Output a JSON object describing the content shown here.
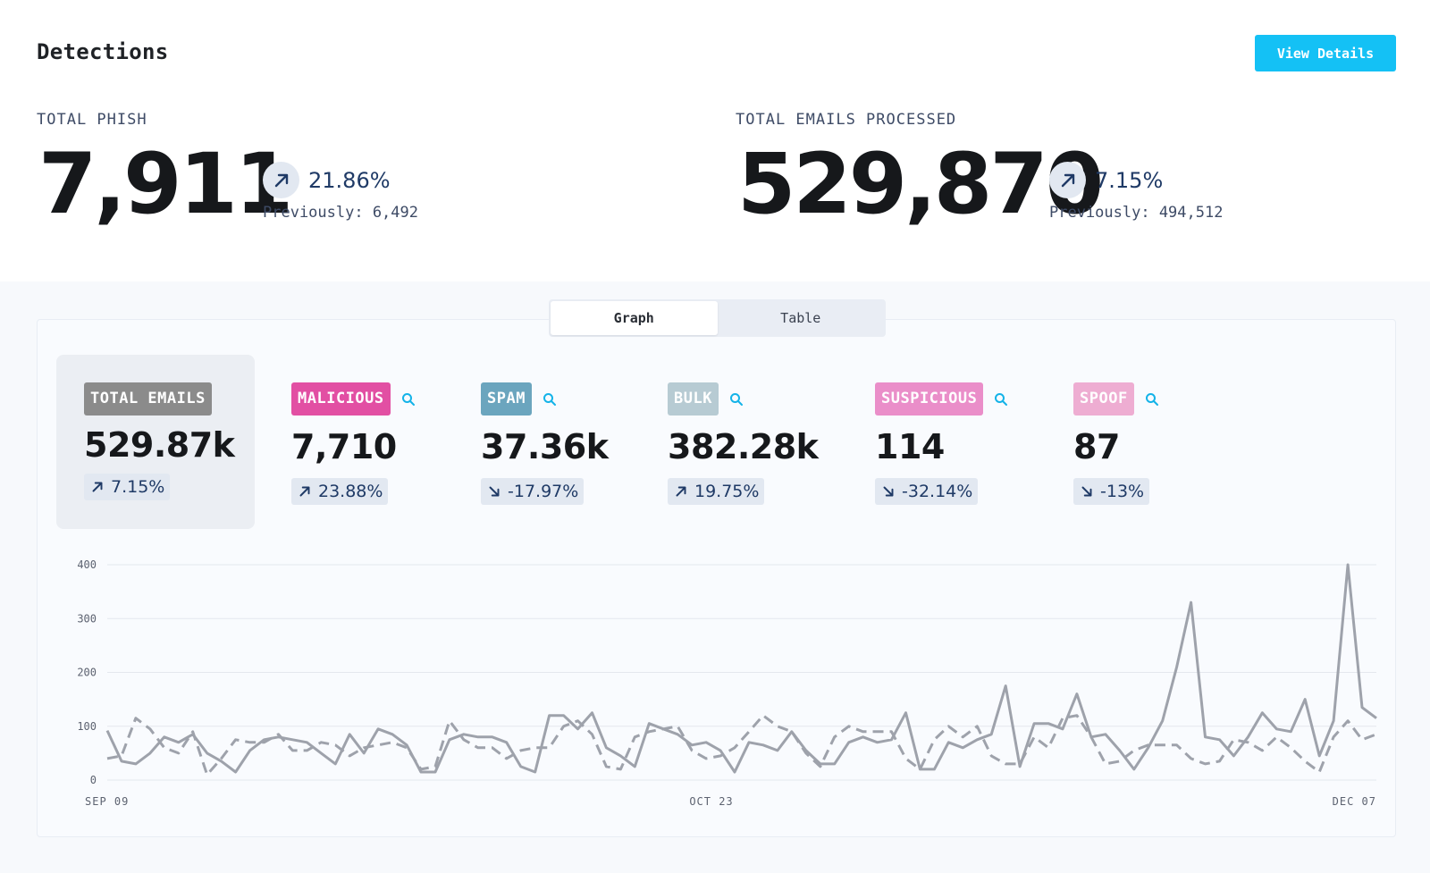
{
  "header": {
    "title": "Detections",
    "view_details_label": "View Details"
  },
  "stats": [
    {
      "label": "TOTAL PHISH",
      "value": "7,911",
      "change": "21.86%",
      "direction": "up",
      "previous": "Previously: 6,492"
    },
    {
      "label": "TOTAL EMAILS PROCESSED",
      "value": "529,870",
      "change": "7.15%",
      "direction": "up",
      "previous": "Previously: 494,512"
    }
  ],
  "view_toggle": {
    "options": [
      "Graph",
      "Table"
    ],
    "selected": "Graph"
  },
  "metrics": [
    {
      "label": "TOTAL EMAILS",
      "value": "529.87k",
      "change": "7.15%",
      "direction": "up",
      "color": "#8b8b8b",
      "searchable": false
    },
    {
      "label": "MALICIOUS",
      "value": "7,710",
      "change": "23.88%",
      "direction": "up",
      "color": "#e24fa3",
      "searchable": true
    },
    {
      "label": "SPAM",
      "value": "37.36k",
      "change": "-17.97%",
      "direction": "down",
      "color": "#6ba5be",
      "searchable": true
    },
    {
      "label": "BULK",
      "value": "382.28k",
      "change": "19.75%",
      "direction": "up",
      "color": "#b7cbd3",
      "searchable": true
    },
    {
      "label": "SUSPICIOUS",
      "value": "114",
      "change": "-32.14%",
      "direction": "down",
      "color": "#ea8ec9",
      "searchable": true
    },
    {
      "label": "SPOOF",
      "value": "87",
      "change": "-13%",
      "direction": "down",
      "color": "#eeadd2",
      "searchable": true
    }
  ],
  "colors": {
    "accent": "#14c1f5",
    "arrow": "#1f3a66",
    "series": "#9ea2ab"
  },
  "chart_data": {
    "type": "line",
    "xlabel": "",
    "ylabel": "",
    "ylim": [
      0,
      400
    ],
    "yticks": [
      0,
      100,
      200,
      300,
      400
    ],
    "xtick_labels": [
      "SEP 09",
      "OCT 23",
      "DEC 07"
    ],
    "grid": true,
    "n_points": 90,
    "series": [
      {
        "style": "solid",
        "values": [
          92,
          35,
          30,
          50,
          80,
          70,
          85,
          50,
          35,
          15,
          55,
          75,
          80,
          75,
          70,
          50,
          30,
          85,
          50,
          95,
          85,
          65,
          15,
          15,
          75,
          85,
          80,
          80,
          70,
          25,
          15,
          120,
          120,
          95,
          125,
          60,
          45,
          25,
          105,
          95,
          85,
          65,
          70,
          55,
          15,
          70,
          65,
          55,
          90,
          55,
          30,
          30,
          70,
          80,
          70,
          75,
          125,
          20,
          20,
          70,
          60,
          75,
          85,
          175,
          25,
          105,
          105,
          95,
          160,
          80,
          85,
          55,
          20,
          60,
          110,
          210,
          330,
          80,
          75,
          45,
          80,
          125,
          95,
          90,
          150,
          45,
          110,
          400,
          135,
          115
        ]
      },
      {
        "style": "dashed",
        "values": [
          40,
          45,
          115,
          95,
          60,
          50,
          90,
          10,
          40,
          75,
          70,
          70,
          85,
          55,
          55,
          70,
          65,
          45,
          60,
          65,
          70,
          60,
          20,
          25,
          110,
          75,
          60,
          60,
          40,
          55,
          60,
          60,
          100,
          110,
          85,
          25,
          20,
          80,
          90,
          95,
          100,
          55,
          40,
          45,
          60,
          90,
          120,
          100,
          90,
          50,
          25,
          80,
          100,
          90,
          90,
          90,
          40,
          20,
          75,
          100,
          80,
          100,
          45,
          30,
          30,
          80,
          60,
          115,
          120,
          80,
          30,
          35,
          55,
          65,
          65,
          65,
          40,
          30,
          35,
          75,
          70,
          55,
          80,
          60,
          35,
          15,
          80,
          110,
          75,
          85
        ]
      }
    ]
  }
}
